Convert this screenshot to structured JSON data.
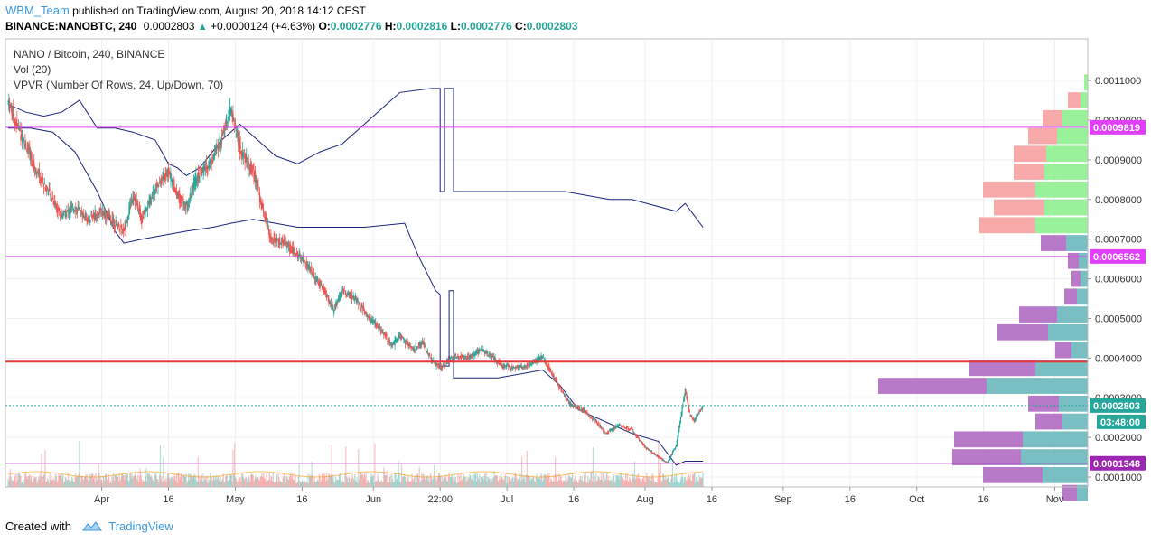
{
  "header": {
    "author": "WBM_Team",
    "published_text": "published on TradingView.com, August 20, 2018 14:12 CEST",
    "symbol": "BINANCE:NANOBTC, 240",
    "last": "0.0002803",
    "change": "+0.0000124 (+4.63%)",
    "o_label": "O:",
    "o": "0.0002776",
    "h_label": "H:",
    "h": "0.0002816",
    "l_label": "L:",
    "l": "0.0002776",
    "c_label": "C:",
    "c": "0.0002803"
  },
  "legend": {
    "pair": "NANO / Bitcoin, 240, BINANCE",
    "vol": "Vol (20)",
    "vpvr": "VPVR (Number Of Rows, 24, Up/Down, 70)"
  },
  "footer": {
    "created": "Created with",
    "brand": "TradingView"
  },
  "colors": {
    "up": "#26a69a",
    "down": "#ef5350",
    "ma_line": "#1a237e",
    "level_magenta": "#e040fb",
    "level_red": "#e53935",
    "vp_up": "#8ef08e",
    "vp_down": "#f7a0a0",
    "vp_up_va": "#6ab7bb",
    "vp_down_va": "#b06cc2"
  },
  "chart_data": {
    "type": "candlestick",
    "price_axis": {
      "ticks": [
        {
          "v": 0.00011,
          "label": "0.0011000"
        },
        {
          "v": 0.0001,
          "label": "0.0010000"
        },
        {
          "v": 9e-05,
          "label": "0.0009000"
        },
        {
          "v": 8e-05,
          "label": "0.0008000"
        },
        {
          "v": 7e-05,
          "label": "0.0007000"
        },
        {
          "v": 6e-05,
          "label": "0.0006000"
        },
        {
          "v": 5e-05,
          "label": "0.0005000"
        },
        {
          "v": 4e-05,
          "label": "0.0004000"
        },
        {
          "v": 3e-05,
          "label": "0.0003000"
        },
        {
          "v": 2e-05,
          "label": "0.0002000"
        },
        {
          "v": 1e-05,
          "label": "0.0001000"
        }
      ],
      "ylim": [
        7.5e-06,
        0.0001205
      ]
    },
    "time_axis": {
      "labels": [
        {
          "d": 21,
          "label": "Apr"
        },
        {
          "d": 36,
          "label": "16"
        },
        {
          "d": 51,
          "label": "May"
        },
        {
          "d": 66,
          "label": "16"
        },
        {
          "d": 82,
          "label": "Jun"
        },
        {
          "d": 97,
          "label": "22:00"
        },
        {
          "d": 112,
          "label": "Jul"
        },
        {
          "d": 127,
          "label": "16"
        },
        {
          "d": 143,
          "label": "Aug"
        },
        {
          "d": 158,
          "label": "16"
        },
        {
          "d": 174,
          "label": "Sep"
        },
        {
          "d": 189,
          "label": "16"
        },
        {
          "d": 204,
          "label": "Oct"
        },
        {
          "d": 219,
          "label": "16"
        },
        {
          "d": 235,
          "label": "Nov"
        }
      ],
      "xlim": [
        0,
        241
      ]
    },
    "price_path": [
      [
        0,
        0.0001045
      ],
      [
        3,
        9.6e-05
      ],
      [
        6,
        8.8e-05
      ],
      [
        9,
        8.2e-05
      ],
      [
        12,
        7.6e-05
      ],
      [
        15,
        7.8e-05
      ],
      [
        18,
        7.5e-05
      ],
      [
        21,
        7.7e-05
      ],
      [
        24,
        7.4e-05
      ],
      [
        26,
        7.2e-05
      ],
      [
        28,
        8.15e-05
      ],
      [
        30,
        7.5e-05
      ],
      [
        33,
        8.3e-05
      ],
      [
        36,
        8.7e-05
      ],
      [
        38,
        8.1e-05
      ],
      [
        40,
        7.8e-05
      ],
      [
        42,
        8.5e-05
      ],
      [
        45,
        8.9e-05
      ],
      [
        47,
        9.3e-05
      ],
      [
        49,
        0.0001
      ],
      [
        50,
        0.000103
      ],
      [
        52,
        9.3e-05
      ],
      [
        55,
        8.7e-05
      ],
      [
        57,
        7.8e-05
      ],
      [
        59,
        7e-05
      ],
      [
        62,
        6.9e-05
      ],
      [
        65,
        6.6e-05
      ],
      [
        68,
        6.2e-05
      ],
      [
        71,
        5.7e-05
      ],
      [
        73,
        5.2e-05
      ],
      [
        75,
        5.7e-05
      ],
      [
        78,
        5.5e-05
      ],
      [
        81,
        5e-05
      ],
      [
        84,
        4.7e-05
      ],
      [
        86,
        4.3e-05
      ],
      [
        88,
        4.55e-05
      ],
      [
        91,
        4.2e-05
      ],
      [
        93,
        4.4e-05
      ],
      [
        95,
        3.95e-05
      ],
      [
        97,
        3.75e-05
      ],
      [
        100,
        4.05e-05
      ],
      [
        103,
        4e-05
      ],
      [
        106,
        4.2e-05
      ],
      [
        108,
        4.1e-05
      ],
      [
        111,
        3.8e-05
      ],
      [
        113,
        3.75e-05
      ],
      [
        116,
        3.8e-05
      ],
      [
        118,
        3.9e-05
      ],
      [
        120,
        4.05e-05
      ],
      [
        123,
        3.4e-05
      ],
      [
        126,
        2.85e-05
      ],
      [
        129,
        2.7e-05
      ],
      [
        132,
        2.4e-05
      ],
      [
        134,
        2.1e-05
      ],
      [
        137,
        2.3e-05
      ],
      [
        140,
        2.2e-05
      ],
      [
        143,
        1.75e-05
      ],
      [
        146,
        1.5e-05
      ],
      [
        148,
        1.35e-05
      ],
      [
        150,
        1.8e-05
      ],
      [
        152,
        3.2e-05
      ],
      [
        153,
        2.6e-05
      ],
      [
        154,
        2.4e-05
      ],
      [
        155,
        2.62e-05
      ],
      [
        156,
        2.803e-05
      ]
    ],
    "ma_line": [
      [
        0,
        0.000104
      ],
      [
        4,
        0.000102
      ],
      [
        8,
        0.000101
      ],
      [
        12,
        0.000102
      ],
      [
        16,
        0.000105
      ],
      [
        20,
        9.8e-05
      ],
      [
        24,
        9.8e-05
      ],
      [
        28,
        9.7e-05
      ],
      [
        33,
        9.5e-05
      ],
      [
        36,
        8.9e-05
      ],
      [
        38,
        8.8e-05
      ],
      [
        40,
        8.6e-05
      ],
      [
        43,
        8.8e-05
      ],
      [
        48,
        9.5e-05
      ],
      [
        52,
        9.9e-05
      ],
      [
        60,
        9.1e-05
      ],
      [
        65,
        8.9e-05
      ],
      [
        70,
        9.2e-05
      ],
      [
        75,
        9.4e-05
      ],
      [
        80,
        9.9e-05
      ],
      [
        85,
        0.000104
      ],
      [
        88,
        0.000107
      ],
      [
        95,
        0.000108
      ],
      [
        97,
        0.000108
      ],
      [
        97,
        8.2e-05
      ],
      [
        98,
        8.2e-05
      ],
      [
        98,
        0.000108
      ],
      [
        100,
        0.000108
      ],
      [
        100,
        8.2e-05
      ],
      [
        125,
        8.2e-05
      ],
      [
        130,
        8.1e-05
      ],
      [
        135,
        8e-05
      ],
      [
        140,
        8e-05
      ],
      [
        150,
        7.7e-05
      ],
      [
        152,
        7.9e-05
      ],
      [
        154,
        7.6e-05
      ],
      [
        156,
        7.3e-05
      ]
    ],
    "ma_line2": [
      [
        0,
        9.8e-05
      ],
      [
        5,
        9.8e-05
      ],
      [
        10,
        9.7e-05
      ],
      [
        15,
        9.2e-05
      ],
      [
        20,
        8.2e-05
      ],
      [
        24,
        7.2e-05
      ],
      [
        26,
        6.9e-05
      ],
      [
        30,
        7e-05
      ],
      [
        40,
        7.2e-05
      ],
      [
        46,
        7.3e-05
      ],
      [
        50,
        7.4e-05
      ],
      [
        55,
        7.5e-05
      ],
      [
        60,
        7.4e-05
      ],
      [
        65,
        7.3e-05
      ],
      [
        70,
        7.3e-05
      ],
      [
        80,
        7.3e-05
      ],
      [
        89,
        7.4e-05
      ],
      [
        92,
        6.6e-05
      ],
      [
        96,
        5.7e-05
      ],
      [
        97,
        5.6e-05
      ],
      [
        97,
        3.8e-05
      ],
      [
        99,
        3.8e-05
      ],
      [
        99,
        5.7e-05
      ],
      [
        100,
        5.7e-05
      ],
      [
        100,
        3.5e-05
      ],
      [
        110,
        3.5e-05
      ],
      [
        120,
        3.7e-05
      ],
      [
        124,
        3.3e-05
      ],
      [
        128,
        2.7e-05
      ],
      [
        132,
        2.5e-05
      ],
      [
        136,
        2.3e-05
      ],
      [
        140,
        2.1e-05
      ],
      [
        146,
        1.9e-05
      ],
      [
        150,
        1.3e-05
      ],
      [
        152,
        1.4e-05
      ],
      [
        156,
        1.4e-05
      ]
    ],
    "levels": [
      {
        "price": 9.819e-05,
        "label": "0.0009819",
        "color": "#e040fb",
        "width": 1
      },
      {
        "price": 6.562e-05,
        "label": "0.0006562",
        "color": "#e040fb",
        "width": 1
      },
      {
        "price": 3.91e-05,
        "label": "",
        "color": "#e53935",
        "width": 2
      },
      {
        "price": 1.348e-05,
        "label": "0.0001348",
        "color": "#9c27b0",
        "width": 1
      }
    ],
    "current": {
      "price": 2.803e-05,
      "label": "0.0002803",
      "countdown": "03:48:00"
    },
    "volume_profile": [
      {
        "p": 0.0001095,
        "up": 4,
        "down": 0,
        "va": false
      },
      {
        "p": 0.000105,
        "up": 8,
        "down": 14,
        "va": false
      },
      {
        "p": 0.0001005,
        "up": 28,
        "down": 22,
        "va": false
      },
      {
        "p": 9.6e-05,
        "up": 34,
        "down": 32,
        "va": false
      },
      {
        "p": 9.15e-05,
        "up": 46,
        "down": 36,
        "va": false
      },
      {
        "p": 8.7e-05,
        "up": 48,
        "down": 34,
        "va": false
      },
      {
        "p": 8.25e-05,
        "up": 58,
        "down": 58,
        "va": false
      },
      {
        "p": 7.8e-05,
        "up": 48,
        "down": 56,
        "va": false
      },
      {
        "p": 7.35e-05,
        "up": 58,
        "down": 62,
        "va": false
      },
      {
        "p": 6.9e-05,
        "up": 24,
        "down": 28,
        "va": true
      },
      {
        "p": 6.45e-05,
        "up": 10,
        "down": 12,
        "va": true
      },
      {
        "p": 6e-05,
        "up": 8,
        "down": 10,
        "va": true
      },
      {
        "p": 5.55e-05,
        "up": 12,
        "down": 14,
        "va": true
      },
      {
        "p": 5.1e-05,
        "up": 34,
        "down": 42,
        "va": true
      },
      {
        "p": 4.65e-05,
        "up": 44,
        "down": 56,
        "va": true
      },
      {
        "p": 4.2e-05,
        "up": 18,
        "down": 18,
        "va": true
      },
      {
        "p": 3.75e-05,
        "up": 58,
        "down": 74,
        "va": true
      },
      {
        "p": 3.3e-05,
        "up": 112,
        "down": 120,
        "va": true
      },
      {
        "p": 2.85e-05,
        "up": 32,
        "down": 34,
        "va": true
      },
      {
        "p": 2.4e-05,
        "up": 28,
        "down": 30,
        "va": true
      },
      {
        "p": 1.95e-05,
        "up": 72,
        "down": 76,
        "va": true
      },
      {
        "p": 1.5e-05,
        "up": 74,
        "down": 76,
        "va": true
      },
      {
        "p": 1.05e-05,
        "up": 50,
        "down": 66,
        "va": true
      },
      {
        "p": 6e-06,
        "up": 12,
        "down": 16,
        "va": true
      }
    ]
  }
}
